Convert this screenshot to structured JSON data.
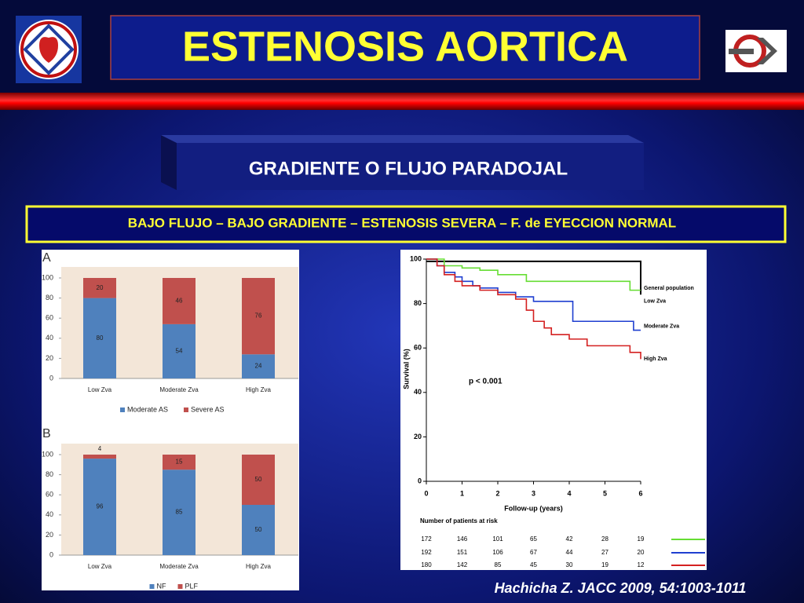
{
  "slide": {
    "title": "ESTENOSIS AORTICA",
    "subtitle": "GRADIENTE O FLUJO PARADOJAL",
    "banner": "BAJO FLUJO – BAJO GRADIENTE – ESTENOSIS SEVERA – F. de EYECCION NORMAL",
    "citation": "Hachicha Z. JACC 2009, 54:1003-1011"
  },
  "chart_data": [
    {
      "type": "bar",
      "stacked": true,
      "panel_label": "A",
      "categories": [
        "Low Zva",
        "Moderate Zva",
        "High Zva"
      ],
      "series": [
        {
          "name": "Moderate AS",
          "color": "#4f81bd",
          "values": [
            80,
            54,
            24
          ]
        },
        {
          "name": "Severe AS",
          "color": "#c0504d",
          "values": [
            20,
            46,
            76
          ]
        }
      ],
      "ylim": [
        0,
        100
      ],
      "yticks": [
        0,
        20,
        40,
        60,
        80,
        100
      ]
    },
    {
      "type": "bar",
      "stacked": true,
      "panel_label": "B",
      "categories": [
        "Low Zva",
        "Moderate Zva",
        "High Zva"
      ],
      "series": [
        {
          "name": "NF",
          "color": "#4f81bd",
          "values": [
            96,
            85,
            50
          ]
        },
        {
          "name": "PLF",
          "color": "#c0504d",
          "values": [
            4,
            15,
            50
          ]
        }
      ],
      "ylim": [
        0,
        100
      ],
      "yticks": [
        0,
        20,
        40,
        60,
        80,
        100
      ]
    },
    {
      "type": "line",
      "step": true,
      "xlabel": "Follow-up (years)",
      "ylabel": "Survival (%)",
      "annotation": "p < 0.001",
      "table_title": "Number of patients at risk",
      "xlim": [
        0,
        6
      ],
      "xticks": [
        0,
        1,
        2,
        3,
        4,
        5,
        6
      ],
      "ylim": [
        0,
        100
      ],
      "yticks": [
        0,
        20,
        40,
        60,
        80,
        100
      ],
      "series": [
        {
          "name": "General population",
          "color": "#000000",
          "x": [
            0,
            6
          ],
          "values": [
            99,
            84
          ]
        },
        {
          "name": "Low Zva",
          "color": "#66dd33",
          "x": [
            0,
            0.5,
            1,
            1.5,
            2,
            2.8,
            4.5,
            5.7,
            6
          ],
          "values": [
            100,
            97,
            96,
            95,
            93,
            90,
            90,
            86,
            86
          ],
          "at_risk": [
            172,
            146,
            101,
            65,
            42,
            28,
            19
          ]
        },
        {
          "name": "Moderate Zva",
          "color": "#1f3fd0",
          "x": [
            0,
            0.3,
            0.5,
            0.8,
            1,
            1.3,
            1.5,
            2,
            2.5,
            3,
            4.1,
            5.8,
            6
          ],
          "values": [
            100,
            97,
            94,
            92,
            90,
            88,
            87,
            85,
            83,
            81,
            72,
            68,
            68
          ],
          "at_risk": [
            192,
            151,
            106,
            67,
            44,
            27,
            20
          ]
        },
        {
          "name": "High Zva",
          "color": "#d42020",
          "x": [
            0,
            0.3,
            0.5,
            0.8,
            1,
            1.5,
            2,
            2.5,
            2.8,
            3,
            3.3,
            3.5,
            4,
            4.5,
            5.7,
            6
          ],
          "values": [
            100,
            97,
            93,
            90,
            88,
            86,
            84,
            82,
            77,
            72,
            69,
            66,
            64,
            61,
            58,
            55
          ],
          "at_risk": [
            180,
            142,
            85,
            45,
            30,
            19,
            12
          ]
        }
      ]
    }
  ]
}
